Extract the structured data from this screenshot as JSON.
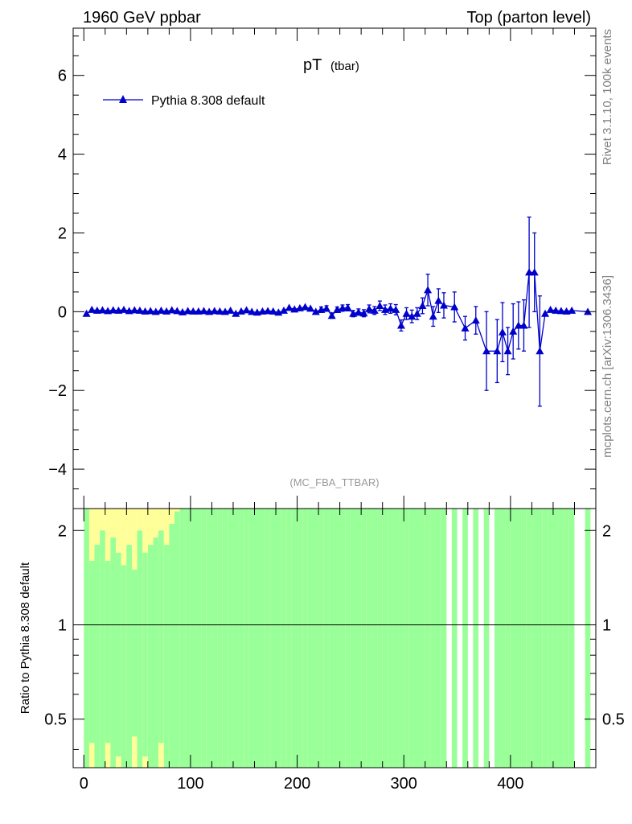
{
  "header": {
    "left": "1960 GeV ppbar",
    "right": "Top (parton level)"
  },
  "side_text": {
    "top": "Rivet 3.1.10,  100k events",
    "bottom": "mcplots.cern.ch [arXiv:1306.3436]"
  },
  "chart_data": [
    {
      "type": "line",
      "title_main": "pT",
      "title_sub": "(tbar)",
      "watermark": "(MC_FBA_TTBAR)",
      "xlim": [
        -10,
        480
      ],
      "ylim": [
        -5,
        7.2
      ],
      "y_ticks": [
        -4,
        -2,
        0,
        2,
        4,
        6
      ],
      "y_tick_labels": [
        "−4",
        "−2",
        "0",
        "2",
        "4",
        "6"
      ],
      "legend": {
        "label": "Pythia 8.308 default",
        "placement": "top-left"
      },
      "series": [
        {
          "name": "Pythia 8.308 default",
          "color": "#0000cc",
          "x": [
            2.5,
            7.5,
            12.5,
            17.5,
            22.5,
            27.5,
            32.5,
            37.5,
            42.5,
            47.5,
            52.5,
            57.5,
            62.5,
            67.5,
            72.5,
            77.5,
            82.5,
            87.5,
            92.5,
            97.5,
            102.5,
            107.5,
            112.5,
            117.5,
            122.5,
            127.5,
            132.5,
            137.5,
            142.5,
            147.5,
            152.5,
            157.5,
            162.5,
            167.5,
            172.5,
            177.5,
            182.5,
            187.5,
            192.5,
            197.5,
            202.5,
            207.5,
            212.5,
            217.5,
            222.5,
            227.5,
            232.5,
            237.5,
            242.5,
            247.5,
            252.5,
            257.5,
            262.5,
            267.5,
            272.5,
            277.5,
            282.5,
            287.5,
            292.5,
            297.5,
            302.5,
            307.5,
            312.5,
            317.5,
            322.5,
            327.5,
            332.5,
            337.5,
            347.5,
            357.5,
            367.5,
            377.5,
            387.5,
            392.5,
            397.5,
            402.5,
            407.5,
            412.5,
            417.5,
            422.5,
            427.5,
            432.5,
            437.5,
            442.5,
            447.5,
            452.5,
            457.5,
            472.5
          ],
          "y": [
            -0.05,
            0.05,
            0.03,
            0.04,
            0.02,
            0.04,
            0.03,
            0.05,
            0.02,
            0.04,
            0.03,
            0.01,
            0.02,
            0.0,
            0.03,
            0.01,
            0.04,
            0.02,
            -0.01,
            0.02,
            0.01,
            0.01,
            0.02,
            0.0,
            0.02,
            0.01,
            0.0,
            0.03,
            -0.05,
            0.01,
            0.04,
            0.0,
            -0.02,
            0.01,
            0.02,
            0.01,
            -0.02,
            0.03,
            0.1,
            0.06,
            0.09,
            0.12,
            0.08,
            0.0,
            0.05,
            0.08,
            -0.1,
            0.05,
            0.09,
            0.1,
            -0.05,
            -0.01,
            -0.04,
            0.07,
            0.03,
            0.15,
            0.05,
            0.08,
            0.05,
            -0.35,
            -0.05,
            -0.12,
            -0.05,
            0.15,
            0.55,
            -0.12,
            0.28,
            0.16,
            0.12,
            -0.42,
            -0.22,
            -1.0,
            -1.0,
            -0.52,
            -1.0,
            -0.5,
            -0.35,
            -0.35,
            1.0,
            1.0,
            -1.0,
            -0.05,
            0.05,
            0.03,
            0.02,
            0.01,
            0.03,
            0.0
          ],
          "yerr": [
            0.04,
            0.04,
            0.04,
            0.04,
            0.04,
            0.04,
            0.04,
            0.04,
            0.04,
            0.04,
            0.04,
            0.04,
            0.04,
            0.04,
            0.04,
            0.04,
            0.04,
            0.04,
            0.04,
            0.04,
            0.04,
            0.04,
            0.04,
            0.04,
            0.04,
            0.04,
            0.04,
            0.04,
            0.05,
            0.05,
            0.05,
            0.05,
            0.05,
            0.05,
            0.05,
            0.05,
            0.05,
            0.05,
            0.06,
            0.06,
            0.06,
            0.06,
            0.06,
            0.06,
            0.07,
            0.07,
            0.07,
            0.07,
            0.08,
            0.08,
            0.08,
            0.08,
            0.09,
            0.1,
            0.1,
            0.12,
            0.12,
            0.12,
            0.13,
            0.14,
            0.15,
            0.16,
            0.15,
            0.2,
            0.4,
            0.25,
            0.3,
            0.32,
            0.38,
            0.3,
            0.35,
            1.0,
            0.8,
            0.75,
            0.6,
            0.7,
            0.6,
            0.65,
            1.4,
            1.0,
            1.4,
            0.05,
            0.05,
            0.05,
            0.05,
            0.05,
            0.05,
            0.05
          ]
        }
      ]
    },
    {
      "type": "area",
      "ylabel": "Ratio to Pythia 8.308 default",
      "xlim": [
        -10,
        480
      ],
      "ylim": [
        0.35,
        2.35
      ],
      "y_scale": "log",
      "y_ticks": [
        0.5,
        1,
        2
      ],
      "y_tick_labels": [
        "0.5",
        "1",
        "2"
      ],
      "x_ticks": [
        0,
        100,
        200,
        300,
        400
      ],
      "x_tick_labels": [
        "0",
        "100",
        "200",
        "300",
        "400"
      ],
      "reference_line": 1,
      "band_colors": {
        "inner": "#99ff99",
        "outer": "#ffff99"
      },
      "bins_x": [
        2.5,
        7.5,
        12.5,
        17.5,
        22.5,
        27.5,
        32.5,
        37.5,
        42.5,
        47.5,
        52.5,
        57.5,
        62.5,
        67.5,
        72.5,
        77.5,
        82.5,
        87.5,
        92.5,
        97.5,
        102.5,
        107.5,
        112.5,
        117.5,
        122.5,
        127.5,
        132.5,
        137.5,
        142.5,
        147.5,
        152.5,
        157.5,
        162.5,
        167.5,
        172.5,
        177.5,
        182.5,
        187.5,
        192.5,
        197.5,
        202.5,
        207.5,
        212.5,
        217.5,
        222.5,
        227.5,
        232.5,
        237.5,
        242.5,
        247.5,
        252.5,
        257.5,
        262.5,
        267.5,
        272.5,
        277.5,
        282.5,
        287.5,
        292.5,
        297.5,
        302.5,
        307.5,
        312.5,
        317.5,
        322.5,
        327.5,
        332.5,
        337.5,
        347.5,
        357.5,
        367.5,
        377.5,
        387.5,
        392.5,
        397.5,
        402.5,
        407.5,
        412.5,
        417.5,
        422.5,
        427.5,
        432.5,
        437.5,
        442.5,
        447.5,
        452.5,
        457.5,
        472.5
      ],
      "inner_low": [
        0.35,
        0.42,
        0.35,
        0.35,
        0.42,
        0.35,
        0.38,
        0.35,
        0.35,
        0.44,
        0.35,
        0.38,
        0.35,
        0.35,
        0.42,
        0.35,
        0.35,
        0.35,
        0.35,
        0.35,
        0.35,
        0.35,
        0.35,
        0.35,
        0.35,
        0.35,
        0.35,
        0.35,
        0.35,
        0.35,
        0.35,
        0.35,
        0.35,
        0.35,
        0.35,
        0.35,
        0.35,
        0.35,
        0.35,
        0.35,
        0.35,
        0.35,
        0.35,
        0.35,
        0.35,
        0.35,
        0.35,
        0.35,
        0.35,
        0.35,
        0.35,
        0.35,
        0.35,
        0.35,
        0.35,
        0.35,
        0.35,
        0.35,
        0.35,
        0.35,
        0.35,
        0.35,
        0.35,
        0.35,
        0.35,
        0.35,
        0.35,
        0.35,
        0.35,
        0.35,
        0.35,
        0.35,
        0.35,
        0.35,
        0.35,
        0.35,
        0.35,
        0.35,
        0.35,
        0.35,
        0.35,
        0.35,
        0.35,
        0.35,
        0.35,
        0.35,
        0.35,
        0.35
      ],
      "inner_high": [
        2.35,
        1.6,
        1.8,
        2.0,
        1.6,
        1.9,
        1.7,
        1.55,
        1.8,
        1.5,
        2.0,
        1.7,
        1.8,
        1.9,
        2.0,
        1.8,
        2.1,
        2.3,
        2.35,
        2.35,
        2.35,
        2.35,
        2.35,
        2.35,
        2.35,
        2.35,
        2.35,
        2.35,
        2.35,
        2.35,
        2.35,
        2.35,
        2.35,
        2.35,
        2.35,
        2.35,
        2.35,
        2.35,
        2.35,
        2.35,
        2.35,
        2.35,
        2.35,
        2.35,
        2.35,
        2.35,
        2.35,
        2.35,
        2.35,
        2.35,
        2.35,
        2.35,
        2.35,
        2.35,
        2.35,
        2.35,
        2.35,
        2.35,
        2.35,
        2.35,
        2.35,
        2.35,
        2.35,
        2.35,
        2.35,
        2.35,
        2.35,
        2.35,
        2.35,
        2.35,
        2.35,
        2.35,
        2.35,
        2.35,
        2.35,
        2.35,
        2.35,
        2.35,
        2.35,
        2.35,
        2.35,
        2.35,
        2.35,
        2.35,
        2.35,
        2.35,
        2.35,
        2.35
      ],
      "outer_low": [
        0.35,
        0.35,
        0.35,
        0.35,
        0.35,
        0.35,
        0.35,
        0.35,
        0.35,
        0.35,
        0.35,
        0.35,
        0.35,
        0.35,
        0.35,
        0.35,
        0.35,
        0.35,
        0.35,
        0.35,
        0.35,
        0.35,
        0.35,
        0.35,
        0.35,
        0.35,
        0.35,
        0.35,
        0.35,
        0.35,
        0.35,
        0.35,
        0.35,
        0.35,
        0.35,
        0.35,
        0.35,
        0.35,
        0.35,
        0.35,
        0.35,
        0.35,
        0.35,
        0.35,
        0.35,
        0.35,
        0.35,
        0.35,
        0.35,
        0.35,
        0.35,
        0.35,
        0.35,
        0.35,
        0.35,
        0.35,
        0.35,
        0.35,
        0.35,
        0.35,
        0.35,
        0.35,
        0.35,
        0.35,
        0.35,
        0.35,
        0.35,
        0.35,
        0.35,
        0.35,
        0.35,
        0.35,
        0.35,
        0.35,
        0.35,
        0.35,
        0.35,
        0.35,
        0.35,
        0.35,
        0.35,
        0.35,
        0.35,
        0.35,
        0.35,
        0.35,
        0.35,
        0.35
      ],
      "outer_high": [
        2.35,
        2.35,
        2.35,
        2.35,
        2.35,
        2.35,
        2.35,
        2.35,
        2.35,
        2.35,
        2.35,
        2.35,
        2.35,
        2.35,
        2.35,
        2.35,
        2.35,
        2.35,
        2.35,
        2.35,
        2.35,
        2.35,
        2.35,
        2.35,
        2.35,
        2.35,
        2.35,
        2.35,
        2.35,
        2.35,
        2.35,
        2.35,
        2.35,
        2.35,
        2.35,
        2.35,
        2.35,
        2.35,
        2.35,
        2.35,
        2.35,
        2.35,
        2.35,
        2.35,
        2.35,
        2.35,
        2.35,
        2.35,
        2.35,
        2.35,
        2.35,
        2.35,
        2.35,
        2.35,
        2.35,
        2.35,
        2.35,
        2.35,
        2.35,
        2.35,
        2.35,
        2.35,
        2.35,
        2.35,
        2.35,
        2.35,
        2.35,
        2.35,
        2.35,
        2.35,
        2.35,
        2.35,
        2.35,
        2.35,
        2.35,
        2.35,
        2.35,
        2.35,
        2.35,
        2.35,
        2.35,
        2.35,
        2.35,
        2.35,
        2.35,
        2.35,
        2.35,
        2.35
      ]
    }
  ]
}
